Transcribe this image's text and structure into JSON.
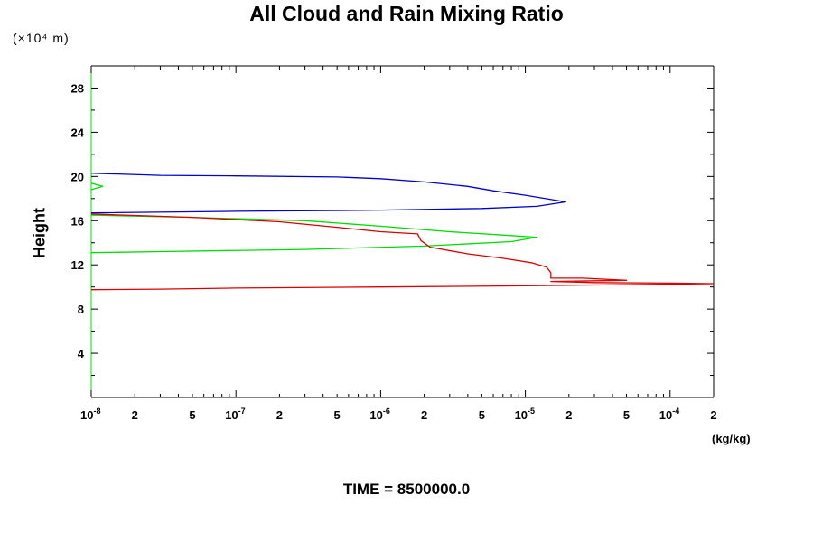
{
  "title": "All Cloud and Rain Mixing Ratio",
  "y_unit_label": "(×10⁴ m)",
  "ylabel": "Height",
  "xlabel_unit": "(kg/kg)",
  "footer": "TIME = 8500000.0",
  "chart_data": {
    "type": "line",
    "x_scale": "log",
    "xlim": [
      1e-08,
      0.0002
    ],
    "ylim": [
      0,
      30
    ],
    "y_ticks": [
      4,
      8,
      12,
      16,
      20,
      24,
      28
    ],
    "x_tick_labels": [
      {
        "value": 1e-08,
        "base": "10",
        "exp": "-8"
      },
      {
        "value": 2e-08,
        "base": "2",
        "exp": ""
      },
      {
        "value": 5e-08,
        "base": "5",
        "exp": ""
      },
      {
        "value": 1e-07,
        "base": "10",
        "exp": "-7"
      },
      {
        "value": 2e-07,
        "base": "2",
        "exp": ""
      },
      {
        "value": 5e-07,
        "base": "5",
        "exp": ""
      },
      {
        "value": 1e-06,
        "base": "10",
        "exp": "-6"
      },
      {
        "value": 2e-06,
        "base": "2",
        "exp": ""
      },
      {
        "value": 5e-06,
        "base": "5",
        "exp": ""
      },
      {
        "value": 1e-05,
        "base": "10",
        "exp": "-5"
      },
      {
        "value": 2e-05,
        "base": "2",
        "exp": ""
      },
      {
        "value": 5e-05,
        "base": "5",
        "exp": ""
      },
      {
        "value": 0.0001,
        "base": "10",
        "exp": "-4"
      },
      {
        "value": 0.0002,
        "base": "2",
        "exp": ""
      }
    ],
    "grid": false,
    "series": [
      {
        "color": "#0000cc",
        "points": [
          [
            1e-08,
            20.3
          ],
          [
            3e-08,
            20.1
          ],
          [
            1e-07,
            20.05
          ],
          [
            5e-07,
            19.95
          ],
          [
            1e-06,
            19.8
          ],
          [
            2e-06,
            19.5
          ],
          [
            4e-06,
            19.1
          ],
          [
            6e-06,
            18.7
          ],
          [
            1e-05,
            18.3
          ],
          [
            1.9e-05,
            17.7
          ],
          [
            1.2e-05,
            17.3
          ],
          [
            5e-06,
            17.1
          ],
          [
            1e-06,
            16.95
          ],
          [
            1e-07,
            16.85
          ],
          [
            1e-08,
            16.7
          ]
        ]
      },
      {
        "color": "#00dd00",
        "points": [
          [
            1e-08,
            19.4
          ],
          [
            1.2e-08,
            19.1
          ],
          [
            1e-08,
            18.8
          ]
        ]
      },
      {
        "color": "#00dd00",
        "points": [
          [
            1e-08,
            16.5
          ],
          [
            5e-08,
            16.3
          ],
          [
            3e-07,
            16.0
          ],
          [
            1e-06,
            15.5
          ],
          [
            3e-06,
            15.0
          ],
          [
            7e-06,
            14.7
          ],
          [
            1.2e-05,
            14.5
          ],
          [
            8e-06,
            14.1
          ],
          [
            2e-06,
            13.7
          ],
          [
            3e-07,
            13.4
          ],
          [
            3e-08,
            13.2
          ],
          [
            1e-08,
            13.1
          ]
        ]
      },
      {
        "color": "#dd0000",
        "points": [
          [
            1e-08,
            16.6
          ],
          [
            5e-08,
            16.3
          ],
          [
            2e-07,
            15.9
          ],
          [
            5e-07,
            15.4
          ],
          [
            1e-06,
            15.0
          ],
          [
            1.8e-06,
            14.8
          ],
          [
            1.9e-06,
            14.2
          ],
          [
            2.2e-06,
            13.6
          ],
          [
            4e-06,
            13.0
          ],
          [
            7e-06,
            12.6
          ],
          [
            1.1e-05,
            12.2
          ],
          [
            1.4e-05,
            11.8
          ],
          [
            1.5e-05,
            11.3
          ],
          [
            1.5e-05,
            10.8
          ],
          [
            2.5e-05,
            10.8
          ],
          [
            5e-05,
            10.6
          ],
          [
            1.5e-05,
            10.5
          ],
          [
            3e-05,
            10.4
          ],
          [
            0.0001,
            10.35
          ],
          [
            0.0002,
            10.3
          ],
          [
            1e-05,
            10.1
          ],
          [
            1e-06,
            10.0
          ],
          [
            1e-07,
            9.9
          ],
          [
            3e-08,
            9.8
          ],
          [
            1e-08,
            9.75
          ]
        ]
      }
    ]
  }
}
